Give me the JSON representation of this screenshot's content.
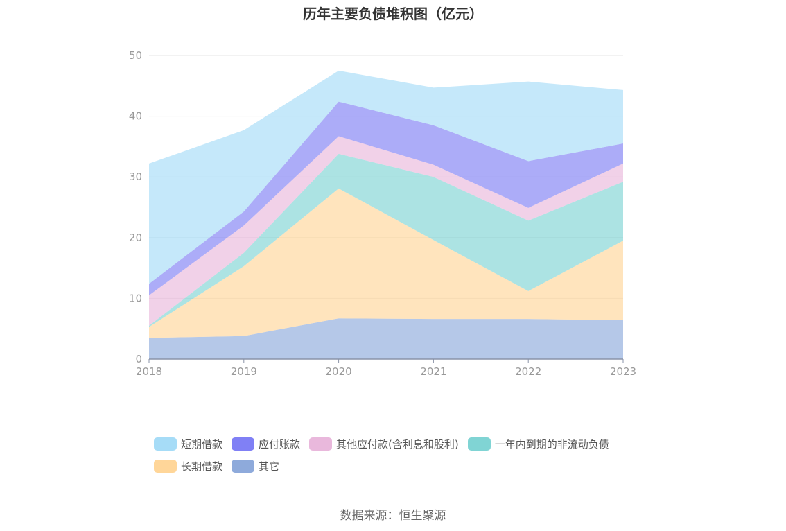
{
  "chart_data": {
    "type": "area",
    "title": "历年主要负债堆积图（亿元）",
    "stacked": true,
    "categories": [
      "2018",
      "2019",
      "2020",
      "2021",
      "2022",
      "2023"
    ],
    "ylim": [
      0,
      50
    ],
    "yticks": [
      "0",
      "10",
      "20",
      "30",
      "40",
      "50"
    ],
    "grid": true,
    "legend_position": "bottom",
    "series": [
      {
        "name": "其它",
        "color": "#8eaadb",
        "values": [
          3.5,
          3.8,
          6.7,
          6.6,
          6.6,
          6.4
        ]
      },
      {
        "name": "长期借款",
        "color": "#ffd699",
        "values": [
          1.8,
          11.5,
          21.4,
          13.0,
          4.6,
          13.1
        ]
      },
      {
        "name": "一年内到期的非流动负债",
        "color": "#80d4d4",
        "values": [
          0.2,
          2.2,
          5.7,
          10.4,
          11.6,
          9.7
        ]
      },
      {
        "name": "其他应付款(含利息和股利)",
        "color": "#e9b8dc",
        "values": [
          5.0,
          4.5,
          2.9,
          2.0,
          2.1,
          3.0
        ]
      },
      {
        "name": "应付账款",
        "color": "#8080f5",
        "values": [
          1.9,
          2.3,
          5.7,
          6.5,
          7.7,
          3.3
        ]
      },
      {
        "name": "短期借款",
        "color": "#a6dcf7",
        "values": [
          19.8,
          13.4,
          5.1,
          6.2,
          13.1,
          8.8
        ]
      }
    ]
  },
  "legend": [
    {
      "label": "短期借款",
      "color": "#a6dcf7"
    },
    {
      "label": "应付账款",
      "color": "#8080f5"
    },
    {
      "label": "其他应付款(含利息和股利)",
      "color": "#e9b8dc"
    },
    {
      "label": "一年内到期的非流动负债",
      "color": "#80d4d4"
    },
    {
      "label": "长期借款",
      "color": "#ffd699"
    },
    {
      "label": "其它",
      "color": "#8eaadb"
    }
  ],
  "source": "数据来源：恒生聚源"
}
